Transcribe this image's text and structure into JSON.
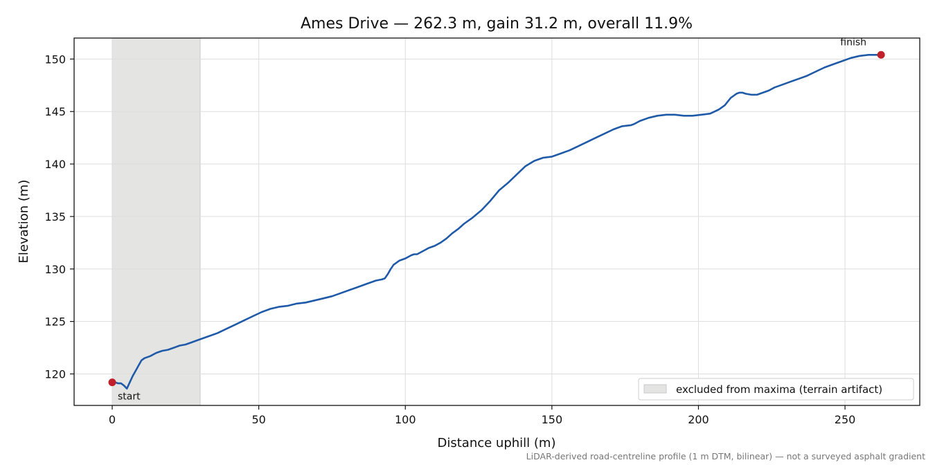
{
  "chart_data": {
    "type": "line",
    "title": "Ames Drive — 262.3 m, gain 31.2 m, overall 11.9%",
    "xlabel": "Distance uphill (m)",
    "ylabel": "Elevation (m)",
    "xlim": [
      -13,
      275.5
    ],
    "ylim": [
      117,
      152
    ],
    "xticks": [
      0,
      50,
      100,
      150,
      200,
      250
    ],
    "yticks": [
      120,
      125,
      130,
      135,
      140,
      145,
      150
    ],
    "grid": true,
    "line_color": "#1f5aa8",
    "marker_color": "#c0202a",
    "shade_color": "#e4e4e3",
    "excluded_range": [
      0,
      30
    ],
    "legend": {
      "position": "lower-right",
      "entries": [
        "excluded from maxima (terrain artifact)"
      ]
    },
    "annotations": [
      {
        "text": "start",
        "x": 0,
        "y": 119.2
      },
      {
        "text": "finish",
        "x": 262.3,
        "y": 150.4
      }
    ],
    "footnote": "LiDAR-derived road-centreline profile (1 m DTM, bilinear) — not a surveyed asphalt gradient",
    "series": [
      {
        "x": [
          0,
          1,
          2,
          3,
          4,
          5,
          6,
          7,
          8,
          9,
          10,
          11,
          13,
          15,
          17,
          19,
          21,
          23,
          25,
          27,
          29,
          30,
          33,
          36,
          39,
          42,
          45,
          48,
          51,
          54,
          57,
          60,
          63,
          66,
          69,
          72,
          75,
          78,
          81,
          84,
          87,
          90,
          92,
          93,
          94,
          95,
          96,
          97,
          98,
          100,
          102,
          103,
          104,
          106,
          108,
          110,
          112,
          114,
          116,
          118,
          120,
          123,
          126,
          129,
          132,
          135,
          138,
          141,
          144,
          147,
          150,
          153,
          156,
          159,
          162,
          165,
          168,
          171,
          174,
          177,
          178,
          180,
          183,
          186,
          189,
          192,
          195,
          198,
          201,
          204,
          207,
          209,
          211,
          213,
          214,
          215,
          216,
          218,
          220,
          222,
          224,
          226,
          228,
          231,
          234,
          237,
          240,
          243,
          246,
          249,
          252,
          255,
          258,
          261,
          262.3
        ],
        "y": [
          119.2,
          119.2,
          119.1,
          119.1,
          118.9,
          118.6,
          119.2,
          119.8,
          120.3,
          120.8,
          121.3,
          121.5,
          121.7,
          122.0,
          122.2,
          122.3,
          122.5,
          122.7,
          122.8,
          123.0,
          123.2,
          123.3,
          123.6,
          123.9,
          124.3,
          124.7,
          125.1,
          125.5,
          125.9,
          126.2,
          126.4,
          126.5,
          126.7,
          126.8,
          127.0,
          127.2,
          127.4,
          127.7,
          128.0,
          128.3,
          128.6,
          128.9,
          129.0,
          129.1,
          129.5,
          130.0,
          130.4,
          130.6,
          130.8,
          131.0,
          131.3,
          131.4,
          131.4,
          131.7,
          132.0,
          132.2,
          132.5,
          132.9,
          133.4,
          133.8,
          134.3,
          134.9,
          135.6,
          136.5,
          137.5,
          138.2,
          139.0,
          139.8,
          140.3,
          140.6,
          140.7,
          141.0,
          141.3,
          141.7,
          142.1,
          142.5,
          142.9,
          143.3,
          143.6,
          143.7,
          143.8,
          144.1,
          144.4,
          144.6,
          144.7,
          144.7,
          144.6,
          144.6,
          144.7,
          144.8,
          145.2,
          145.6,
          146.3,
          146.7,
          146.8,
          146.8,
          146.7,
          146.6,
          146.6,
          146.8,
          147.0,
          147.3,
          147.5,
          147.8,
          148.1,
          148.4,
          148.8,
          149.2,
          149.5,
          149.8,
          150.1,
          150.3,
          150.4,
          150.4,
          150.4
        ]
      }
    ]
  }
}
